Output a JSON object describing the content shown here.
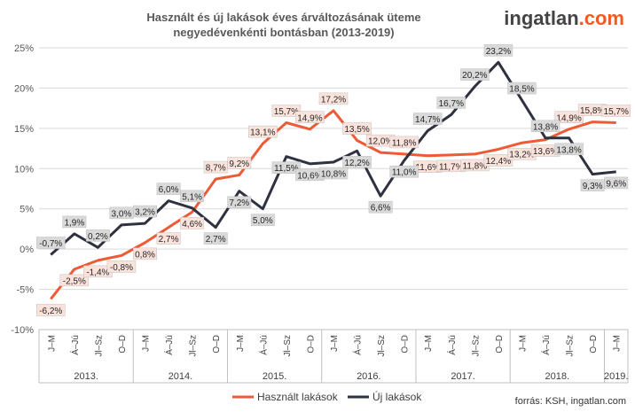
{
  "brand": {
    "part1": "ingatlan",
    "part2": ".com"
  },
  "source": "forrás: KSH, ingatlan.com",
  "chart_data": {
    "type": "line",
    "title": [
      "Használt és új lakások éves árváltozásának üteme",
      "negyedévenkénti bontásban (2013-2019)"
    ],
    "categories": [
      "J–M",
      "Á–Jú",
      "Jl–Sz",
      "O–D",
      "J–M",
      "Á–Jú",
      "Jl–Sz",
      "O–D",
      "J–M",
      "Á–Jú",
      "Jl–Sz",
      "O–D",
      "J–M",
      "Á–Jú",
      "Jl–Sz",
      "O–D",
      "J–M",
      "Á–Jú",
      "Jl–Sz",
      "O–D",
      "J–M",
      "Á–Jú",
      "Jl–Sz",
      "O–D",
      "J–M"
    ],
    "years": [
      {
        "label": "2013.",
        "start": 0,
        "end": 3
      },
      {
        "label": "2014.",
        "start": 4,
        "end": 7
      },
      {
        "label": "2015.",
        "start": 8,
        "end": 11
      },
      {
        "label": "2016.",
        "start": 12,
        "end": 15
      },
      {
        "label": "2017.",
        "start": 16,
        "end": 19
      },
      {
        "label": "2018.",
        "start": 20,
        "end": 23
      },
      {
        "label": "2019.",
        "start": 24,
        "end": 24
      }
    ],
    "series": [
      {
        "name": "Használt lakások",
        "color": "#ee5a35",
        "label_bg": "#fbe3dc",
        "values": [
          -6.2,
          -2.5,
          -1.4,
          -0.8,
          0.8,
          2.7,
          4.6,
          8.7,
          9.2,
          13.1,
          15.7,
          14.9,
          17.2,
          13.5,
          12.0,
          11.8,
          11.6,
          11.7,
          11.8,
          12.4,
          13.2,
          13.6,
          14.9,
          15.8,
          15.7
        ],
        "labels": [
          "-6,2%",
          "-2,5%",
          "-1,4%",
          "-0,8%",
          "0,8%",
          "2,7%",
          "4,6%",
          "8,7%",
          "9,2%",
          "13,1%",
          "15,7%",
          "14,9%",
          "17,2%",
          "13,5%",
          "12,0%",
          "11,8%",
          "11,6%",
          "11,7%",
          "11,8%",
          "12,4%",
          "13,2%",
          "13,6%",
          "14,9%",
          "15,8%",
          "15,7%"
        ]
      },
      {
        "name": "Új lakások",
        "color": "#2e3140",
        "label_bg": "#d9d9d9",
        "values": [
          -0.7,
          1.9,
          0.2,
          3.0,
          3.2,
          6.0,
          5.1,
          2.7,
          7.2,
          5.0,
          11.5,
          10.6,
          10.8,
          12.2,
          6.6,
          11.0,
          14.7,
          16.7,
          20.2,
          23.2,
          18.5,
          13.8,
          13.8,
          9.3,
          9.6
        ],
        "labels": [
          "-0,7%",
          "1,9%",
          "0,2%",
          "3,0%",
          "3,2%",
          "6,0%",
          "5,1%",
          "2,7%",
          "7,2%",
          "5,0%",
          "11,5%",
          "10,6%",
          "10,8%",
          "12,2%",
          "6,6%",
          "11,0%",
          "14,7%",
          "16,7%",
          "20,2%",
          "23,2%",
          "18,5%",
          "13,8%",
          "13,8%",
          "9,3%",
          "9,6%"
        ]
      }
    ],
    "ylim": [
      -10,
      25
    ],
    "yticks": [
      -10,
      -5,
      0,
      5,
      10,
      15,
      20,
      25
    ],
    "ytick_labels": [
      "-10%",
      "-5%",
      "0%",
      "5%",
      "10%",
      "15%",
      "20%",
      "25%"
    ],
    "grid": true,
    "legend": "bottom"
  }
}
